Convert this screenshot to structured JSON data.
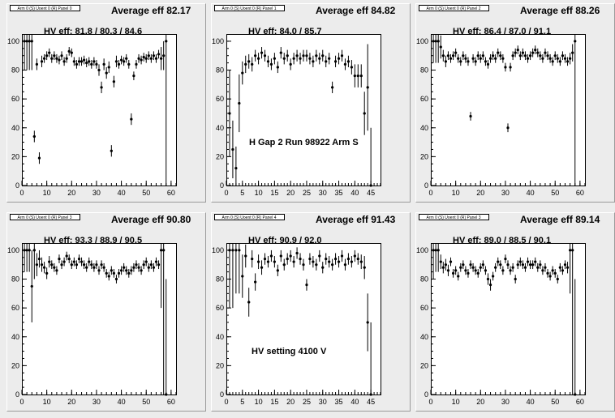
{
  "colors": {
    "canvas": "#ececec",
    "plot_bg": "#ffffff",
    "marker": "#000000"
  },
  "chart_data": [
    {
      "type": "scatter",
      "panel_title": "Arm 0 (S) Uoent 0 (R) Panel 0",
      "average_label": "Average eff 82.17",
      "hv_label": "HV eff:   81.8 / 80.3 / 84.6",
      "note": "",
      "xlim": [
        0,
        62
      ],
      "ylim": [
        0,
        105
      ],
      "xticks": [
        0,
        10,
        20,
        30,
        40,
        50,
        60
      ],
      "yticks": [
        0,
        20,
        40,
        60,
        80,
        100
      ],
      "x": [
        1,
        2,
        3,
        4,
        5,
        6,
        7,
        8,
        9,
        10,
        11,
        12,
        13,
        14,
        15,
        16,
        17,
        18,
        19,
        20,
        21,
        22,
        23,
        24,
        25,
        26,
        27,
        28,
        29,
        30,
        31,
        32,
        33,
        34,
        35,
        36,
        37,
        38,
        39,
        40,
        41,
        42,
        43,
        44,
        45,
        46,
        47,
        48,
        49,
        50,
        51,
        52,
        53,
        54,
        55,
        56,
        57,
        58
      ],
      "y": [
        100,
        100,
        100,
        100,
        34,
        84,
        19,
        86,
        88,
        90,
        92,
        88,
        90,
        88,
        87,
        90,
        86,
        88,
        93,
        92,
        86,
        84,
        86,
        86,
        87,
        85,
        86,
        84,
        86,
        84,
        80,
        68,
        84,
        78,
        82,
        24,
        72,
        86,
        84,
        87,
        86,
        88,
        84,
        46,
        76,
        84,
        88,
        87,
        89,
        88,
        90,
        88,
        90,
        88,
        91,
        88,
        90,
        100
      ],
      "err": [
        20,
        20,
        20,
        20,
        4,
        4,
        4,
        4,
        3,
        3,
        3,
        3,
        3,
        3,
        3,
        3,
        3,
        3,
        3,
        3,
        3,
        3,
        3,
        3,
        3,
        3,
        3,
        3,
        3,
        3,
        4,
        4,
        4,
        4,
        4,
        4,
        4,
        4,
        3,
        3,
        3,
        3,
        3,
        4,
        3,
        3,
        3,
        3,
        3,
        3,
        3,
        3,
        3,
        3,
        3,
        8,
        10,
        100
      ]
    },
    {
      "type": "scatter",
      "panel_title": "Arm 0 (S) Uoent 0 (R) Panel 1",
      "average_label": "Average eff 84.82",
      "hv_label": "HV eff:   84.0 / 85.7",
      "note": "H Gap 2 Run 98922 Arm S",
      "xlim": [
        0,
        48
      ],
      "ylim": [
        0,
        105
      ],
      "xticks": [
        0,
        5,
        10,
        15,
        20,
        25,
        30,
        35,
        40,
        45
      ],
      "yticks": [
        0,
        20,
        40,
        60,
        80,
        100
      ],
      "x": [
        1,
        2,
        3,
        4,
        5,
        6,
        7,
        8,
        9,
        10,
        11,
        12,
        13,
        14,
        15,
        16,
        17,
        18,
        19,
        20,
        21,
        22,
        23,
        24,
        25,
        26,
        27,
        28,
        29,
        30,
        31,
        32,
        33,
        34,
        35,
        36,
        37,
        38,
        39,
        40,
        41,
        42,
        43,
        44,
        45
      ],
      "y": [
        50,
        25,
        12,
        57,
        78,
        84,
        86,
        84,
        90,
        88,
        92,
        90,
        86,
        84,
        88,
        82,
        92,
        88,
        90,
        84,
        88,
        90,
        88,
        90,
        90,
        88,
        86,
        90,
        88,
        90,
        86,
        88,
        68,
        86,
        88,
        90,
        84,
        86,
        82,
        76,
        76,
        76,
        50,
        68,
        0
      ],
      "err": [
        30,
        20,
        15,
        20,
        8,
        6,
        5,
        5,
        4,
        4,
        4,
        4,
        4,
        4,
        4,
        4,
        4,
        4,
        4,
        4,
        4,
        4,
        4,
        4,
        4,
        4,
        4,
        4,
        4,
        4,
        4,
        4,
        4,
        4,
        4,
        4,
        4,
        4,
        5,
        8,
        8,
        8,
        15,
        30,
        40
      ]
    },
    {
      "type": "scatter",
      "panel_title": "Arm 0 (S) Uoent 0 (R) Panel 2",
      "average_label": "Average eff 88.26",
      "hv_label": "HV eff:   86.4 / 87.0 / 91.1",
      "note": "",
      "xlim": [
        0,
        62
      ],
      "ylim": [
        0,
        105
      ],
      "xticks": [
        0,
        10,
        20,
        30,
        40,
        50,
        60
      ],
      "yticks": [
        0,
        20,
        40,
        60,
        80,
        100
      ],
      "x": [
        1,
        2,
        3,
        4,
        5,
        6,
        7,
        8,
        9,
        10,
        11,
        12,
        13,
        14,
        15,
        16,
        17,
        18,
        19,
        20,
        21,
        22,
        23,
        24,
        25,
        26,
        27,
        28,
        29,
        30,
        31,
        32,
        33,
        34,
        35,
        36,
        37,
        38,
        39,
        40,
        41,
        42,
        43,
        44,
        45,
        46,
        47,
        48,
        49,
        50,
        51,
        52,
        53,
        54,
        55,
        56,
        57,
        58
      ],
      "y": [
        100,
        100,
        100,
        96,
        90,
        86,
        90,
        88,
        90,
        92,
        88,
        86,
        90,
        88,
        86,
        48,
        88,
        86,
        90,
        88,
        90,
        86,
        84,
        88,
        90,
        88,
        92,
        90,
        88,
        82,
        40,
        82,
        90,
        92,
        94,
        90,
        92,
        90,
        88,
        90,
        92,
        94,
        92,
        90,
        88,
        92,
        90,
        88,
        86,
        90,
        88,
        86,
        90,
        88,
        86,
        88,
        92,
        100
      ],
      "err": [
        15,
        15,
        15,
        8,
        4,
        4,
        3,
        3,
        3,
        3,
        3,
        3,
        3,
        3,
        3,
        3,
        3,
        3,
        3,
        3,
        3,
        3,
        3,
        3,
        3,
        3,
        3,
        3,
        3,
        3,
        3,
        3,
        3,
        3,
        3,
        3,
        3,
        3,
        3,
        3,
        3,
        3,
        3,
        3,
        3,
        3,
        3,
        3,
        3,
        3,
        3,
        3,
        3,
        3,
        3,
        4,
        6,
        100
      ]
    },
    {
      "type": "scatter",
      "panel_title": "Arm 0 (S) Uoent 0 (R) Panel 3",
      "average_label": "Average eff 90.80",
      "hv_label": "HV eff:   93.3 / 88.9 / 90.5",
      "note": "",
      "xlim": [
        0,
        62
      ],
      "ylim": [
        0,
        105
      ],
      "xticks": [
        0,
        10,
        20,
        30,
        40,
        50,
        60
      ],
      "yticks": [
        0,
        20,
        40,
        60,
        80,
        100
      ],
      "x": [
        1,
        2,
        3,
        4,
        5,
        6,
        7,
        8,
        9,
        10,
        11,
        12,
        13,
        14,
        15,
        16,
        17,
        18,
        19,
        20,
        21,
        22,
        23,
        24,
        25,
        26,
        27,
        28,
        29,
        30,
        31,
        32,
        33,
        34,
        35,
        36,
        37,
        38,
        39,
        40,
        41,
        42,
        43,
        44,
        45,
        46,
        47,
        48,
        49,
        50,
        51,
        52,
        53,
        54,
        55,
        56,
        57,
        58
      ],
      "y": [
        100,
        100,
        100,
        75,
        100,
        90,
        94,
        90,
        88,
        84,
        92,
        90,
        88,
        86,
        94,
        90,
        92,
        96,
        94,
        90,
        92,
        90,
        94,
        92,
        90,
        88,
        92,
        90,
        88,
        90,
        86,
        90,
        88,
        84,
        82,
        86,
        84,
        80,
        84,
        86,
        88,
        86,
        84,
        86,
        88,
        90,
        88,
        86,
        90,
        92,
        88,
        90,
        88,
        92,
        90,
        100,
        100,
        0
      ],
      "err": [
        15,
        15,
        15,
        25,
        20,
        8,
        6,
        5,
        4,
        4,
        4,
        3,
        3,
        3,
        3,
        3,
        3,
        3,
        3,
        3,
        3,
        3,
        3,
        3,
        3,
        3,
        3,
        3,
        3,
        3,
        3,
        3,
        3,
        3,
        3,
        3,
        3,
        3,
        3,
        3,
        3,
        3,
        3,
        3,
        3,
        3,
        3,
        3,
        3,
        3,
        3,
        3,
        3,
        3,
        3,
        40,
        100,
        80
      ]
    },
    {
      "type": "scatter",
      "panel_title": "Arm 0 (S) Uoent 0 (R) Panel 4",
      "average_label": "Average eff 91.43",
      "hv_label": "HV eff:   90.9 / 92.0",
      "note": "HV setting 4100 V",
      "xlim": [
        0,
        48
      ],
      "ylim": [
        0,
        105
      ],
      "xticks": [
        0,
        5,
        10,
        15,
        20,
        25,
        30,
        35,
        40,
        45
      ],
      "yticks": [
        0,
        20,
        40,
        60,
        80,
        100
      ],
      "x": [
        1,
        2,
        3,
        4,
        5,
        6,
        7,
        8,
        9,
        10,
        11,
        12,
        13,
        14,
        15,
        16,
        17,
        18,
        19,
        20,
        21,
        22,
        23,
        24,
        25,
        26,
        27,
        28,
        29,
        30,
        31,
        32,
        33,
        34,
        35,
        36,
        37,
        38,
        39,
        40,
        41,
        42,
        43,
        44,
        45
      ],
      "y": [
        100,
        100,
        100,
        100,
        82,
        96,
        64,
        94,
        78,
        92,
        88,
        94,
        92,
        96,
        92,
        86,
        96,
        90,
        94,
        96,
        92,
        98,
        94,
        90,
        76,
        94,
        92,
        90,
        96,
        88,
        94,
        92,
        90,
        94,
        92,
        96,
        90,
        94,
        92,
        96,
        94,
        92,
        88,
        50,
        0
      ],
      "err": [
        40,
        40,
        30,
        30,
        15,
        8,
        10,
        6,
        6,
        5,
        5,
        4,
        4,
        4,
        4,
        4,
        4,
        4,
        4,
        4,
        4,
        4,
        4,
        4,
        4,
        4,
        4,
        4,
        4,
        4,
        4,
        4,
        4,
        4,
        4,
        4,
        4,
        4,
        4,
        4,
        4,
        5,
        8,
        20,
        50
      ]
    },
    {
      "type": "scatter",
      "panel_title": "Arm 0 (S) Uoent 0 (R) Panel 3",
      "average_label": "Average eff 89.14",
      "hv_label": "HV eff:   89.0 / 88.5 / 90.1",
      "note": "",
      "xlim": [
        0,
        62
      ],
      "ylim": [
        0,
        105
      ],
      "xticks": [
        0,
        10,
        20,
        30,
        40,
        50,
        60
      ],
      "yticks": [
        0,
        20,
        40,
        60,
        80,
        100
      ],
      "x": [
        1,
        2,
        3,
        4,
        5,
        6,
        7,
        8,
        9,
        10,
        11,
        12,
        13,
        14,
        15,
        16,
        17,
        18,
        19,
        20,
        21,
        22,
        23,
        24,
        25,
        26,
        27,
        28,
        29,
        30,
        31,
        32,
        33,
        34,
        35,
        36,
        37,
        38,
        39,
        40,
        41,
        42,
        43,
        44,
        45,
        46,
        47,
        48,
        49,
        50,
        51,
        52,
        53,
        54,
        55,
        56,
        57,
        58
      ],
      "y": [
        100,
        100,
        100,
        92,
        88,
        90,
        86,
        92,
        84,
        86,
        82,
        88,
        90,
        86,
        84,
        90,
        88,
        86,
        84,
        88,
        90,
        86,
        80,
        76,
        82,
        88,
        92,
        90,
        86,
        94,
        90,
        86,
        88,
        80,
        90,
        92,
        90,
        88,
        92,
        90,
        90,
        92,
        88,
        90,
        86,
        88,
        84,
        82,
        86,
        84,
        80,
        88,
        86,
        90,
        88,
        100,
        100,
        0
      ],
      "err": [
        20,
        15,
        15,
        5,
        4,
        4,
        4,
        3,
        3,
        3,
        3,
        3,
        3,
        3,
        3,
        3,
        3,
        3,
        3,
        3,
        3,
        3,
        4,
        4,
        3,
        3,
        3,
        3,
        3,
        3,
        3,
        3,
        3,
        3,
        3,
        3,
        3,
        3,
        3,
        3,
        3,
        3,
        3,
        3,
        3,
        3,
        3,
        3,
        3,
        3,
        3,
        3,
        3,
        3,
        4,
        30,
        100,
        80
      ]
    }
  ]
}
